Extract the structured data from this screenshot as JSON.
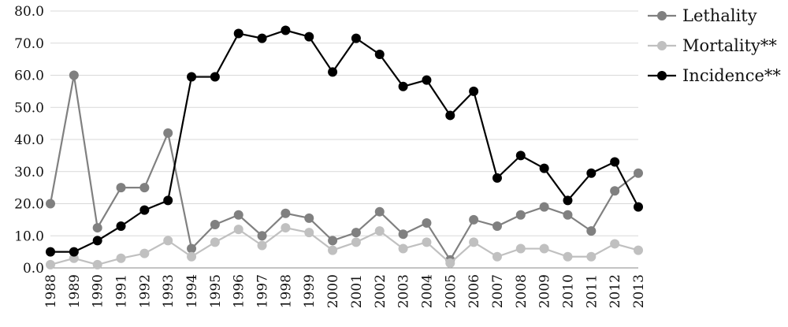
{
  "chart_data": {
    "type": "line",
    "title": "",
    "xlabel": "",
    "ylabel": "",
    "ylim": [
      0,
      80
    ],
    "yticks": [
      "0.0",
      "10.0",
      "20.0",
      "30.0",
      "40.0",
      "50.0",
      "60.0",
      "70.0",
      "80.0"
    ],
    "grid": true,
    "legend_position": "right",
    "x": [
      "1988",
      "1989",
      "1990",
      "1991",
      "1992",
      "1993",
      "1994",
      "1995",
      "1996",
      "1997",
      "1998",
      "1999",
      "2000",
      "2001",
      "2002",
      "2003",
      "2004",
      "2005",
      "2006",
      "2007",
      "2008",
      "2009",
      "2010",
      "2011",
      "2012",
      "2013"
    ],
    "series": [
      {
        "name": "Lethality",
        "color": "#808080",
        "values": [
          20.0,
          60.0,
          12.5,
          25.0,
          25.0,
          42.0,
          6.0,
          13.5,
          16.5,
          10.0,
          17.0,
          15.5,
          8.5,
          11.0,
          17.5,
          10.5,
          14.0,
          2.5,
          15.0,
          13.0,
          16.5,
          19.0,
          16.5,
          11.5,
          24.0,
          29.5
        ]
      },
      {
        "name": "Mortality**",
        "color": "#c0c0c0",
        "values": [
          1.0,
          3.0,
          1.0,
          3.0,
          4.5,
          8.5,
          3.5,
          8.0,
          12.0,
          7.0,
          12.5,
          11.0,
          5.5,
          8.0,
          11.5,
          6.0,
          8.0,
          1.5,
          8.0,
          3.5,
          6.0,
          6.0,
          3.5,
          3.5,
          7.5,
          5.5
        ]
      },
      {
        "name": "Incidence**",
        "color": "#000000",
        "values": [
          5.0,
          5.0,
          8.5,
          13.0,
          18.0,
          21.0,
          59.5,
          59.5,
          73.0,
          71.5,
          74.0,
          72.0,
          61.0,
          71.5,
          66.5,
          56.5,
          58.5,
          47.5,
          55.0,
          28.0,
          35.0,
          31.0,
          21.0,
          29.5,
          33.0,
          19.0
        ]
      }
    ]
  }
}
